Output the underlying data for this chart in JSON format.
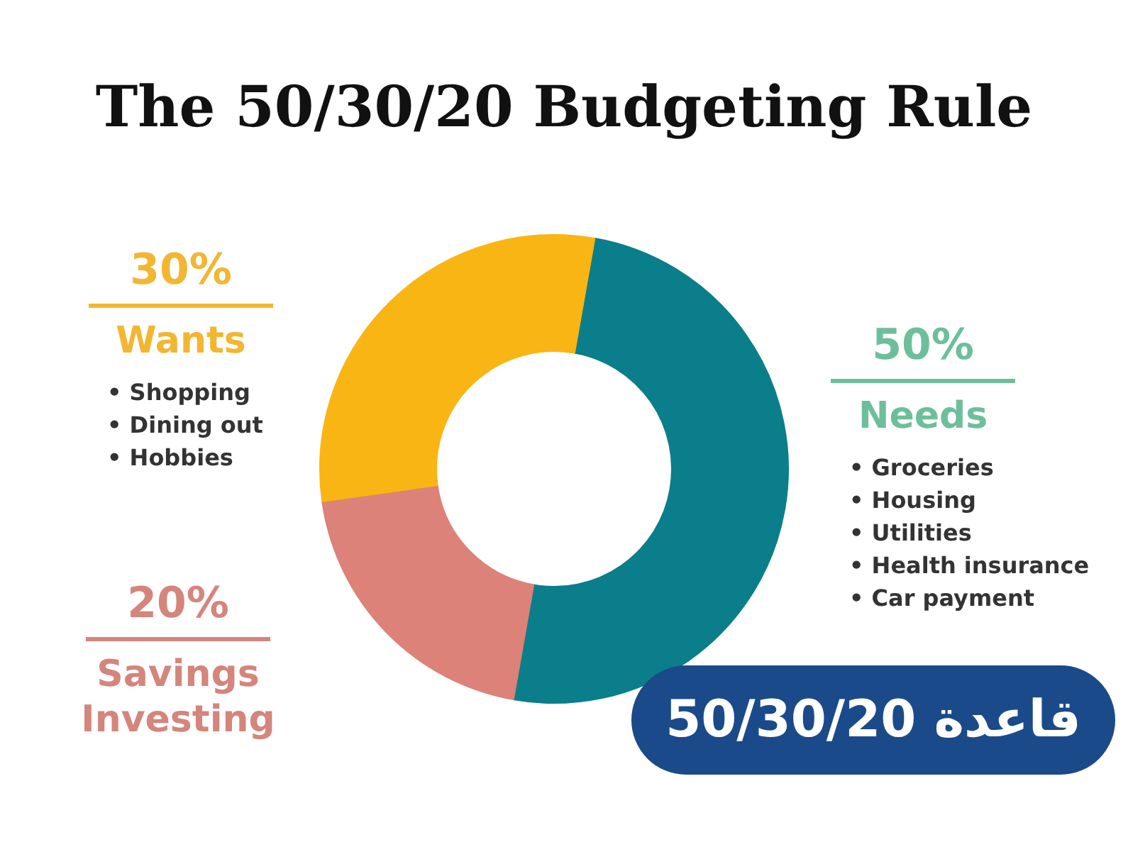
{
  "chart_data": {
    "type": "donut",
    "title": "The 50/30/20 Budgeting Rule",
    "categories": [
      "Needs",
      "Savings\nInvesting",
      "Wants"
    ],
    "values": [
      50,
      20,
      30
    ],
    "value_labels": [
      "50%",
      "20%",
      "30%"
    ],
    "colors": [
      "#0b7e8c",
      "#dc8278",
      "#f9b514"
    ],
    "annotations": [
      "• Groceries\n• Housing\n• Utilities\n• Health insurance\n• Car payment",
      "• Shopping\n• Dining out\n• Hobbies",
      "قاعدة 50/30/20"
    ]
  }
}
